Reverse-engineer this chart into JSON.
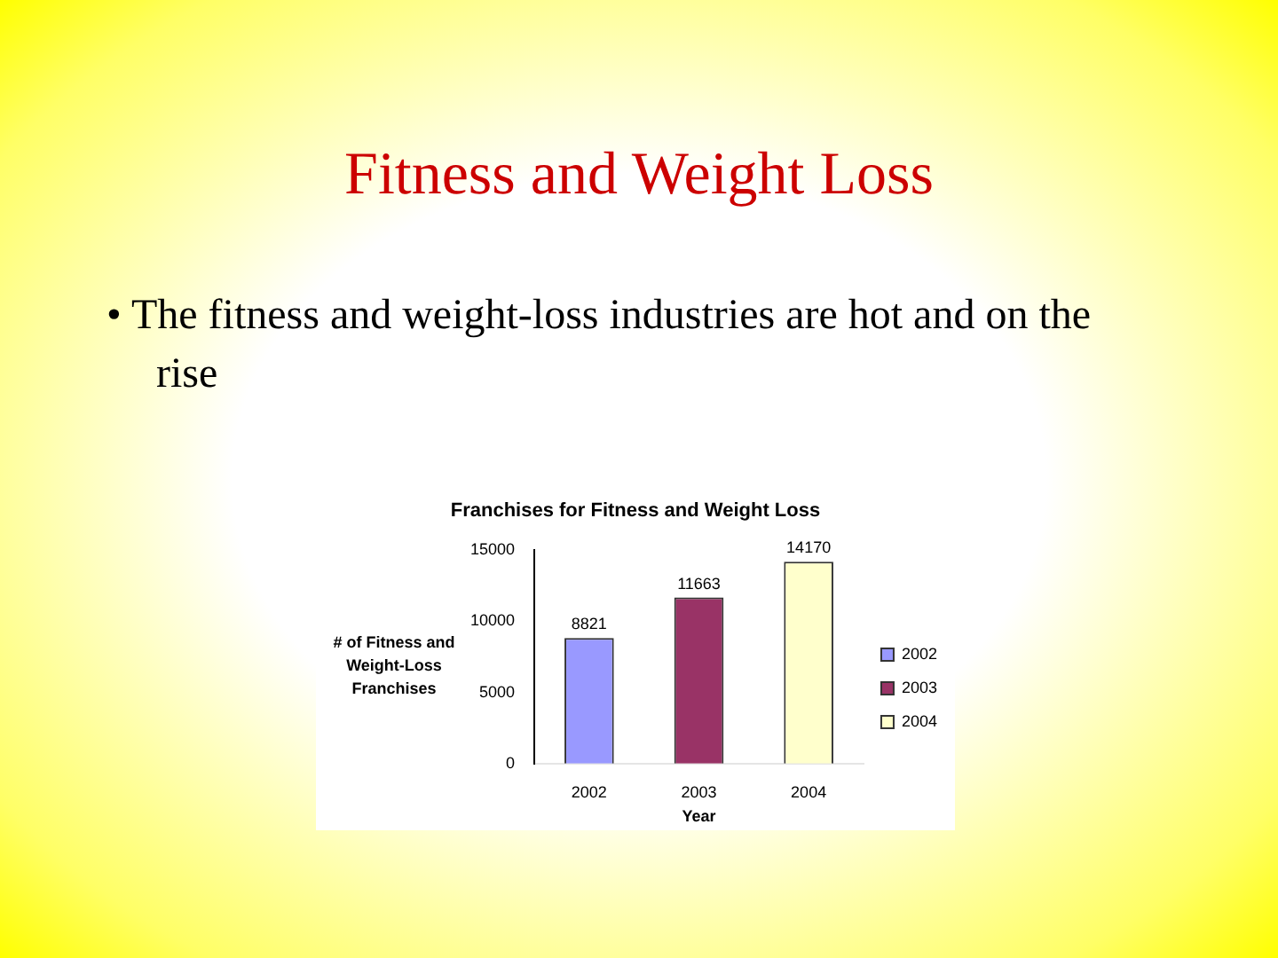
{
  "chart_data": {
    "type": "bar",
    "title": "Fitness and Weight Loss",
    "subtitle": "Franchises for Fitness and Weight Loss",
    "annotations": [
      "• The fitness and weight-loss industries are hot and on the rise"
    ],
    "xlabel": "Year",
    "ylabel": "# of Fitness and Weight-Loss Franchises",
    "categories": [
      "2002",
      "2003",
      "2004"
    ],
    "series": [
      {
        "name": "2002",
        "color": "#9999ff",
        "values": [
          8821,
          null,
          null
        ]
      },
      {
        "name": "2003",
        "color": "#993366",
        "values": [
          null,
          11663,
          null
        ]
      },
      {
        "name": "2004",
        "color": "#ffffcc",
        "values": [
          null,
          null,
          14170
        ]
      }
    ],
    "ylim": [
      0,
      15000
    ],
    "yticks": [
      0,
      5000,
      10000,
      15000
    ],
    "grid": false,
    "legend": "right",
    "data_labels": true
  }
}
